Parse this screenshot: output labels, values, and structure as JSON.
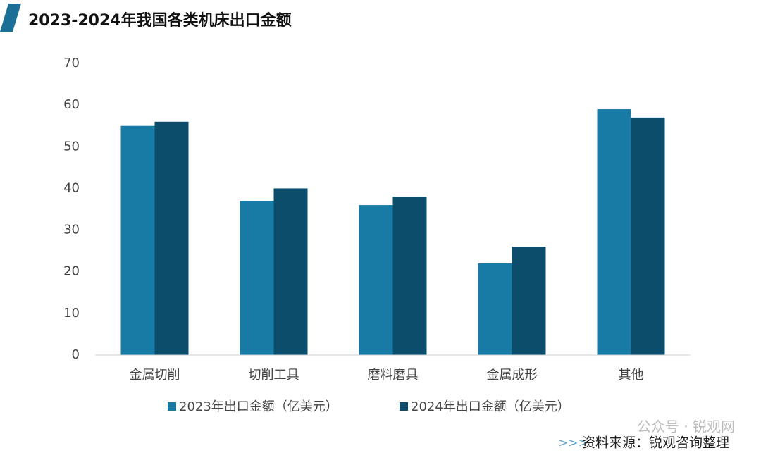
{
  "chart_data": {
    "type": "bar",
    "title": "2023-2024年我国各类机床出口金额",
    "categories": [
      "金属切削",
      "切削工具",
      "磨料磨具",
      "金属成形",
      "其他"
    ],
    "series": [
      {
        "name": "2023年出口金额（亿美元）",
        "color": "#187ba6",
        "values": [
          55,
          37,
          36,
          22,
          59
        ]
      },
      {
        "name": "2024年出口金额（亿美元）",
        "color": "#0b4d6b",
        "values": [
          56,
          40,
          38,
          26,
          57
        ]
      }
    ],
    "ylim": [
      0,
      70
    ],
    "yticks": [
      0,
      10,
      20,
      30,
      40,
      50,
      60,
      70
    ],
    "grid": false,
    "legend": "bottom",
    "watermark": "公众号 · 锐观网",
    "source_marker": ">>>",
    "source": "资料来源：锐观咨询整理"
  }
}
